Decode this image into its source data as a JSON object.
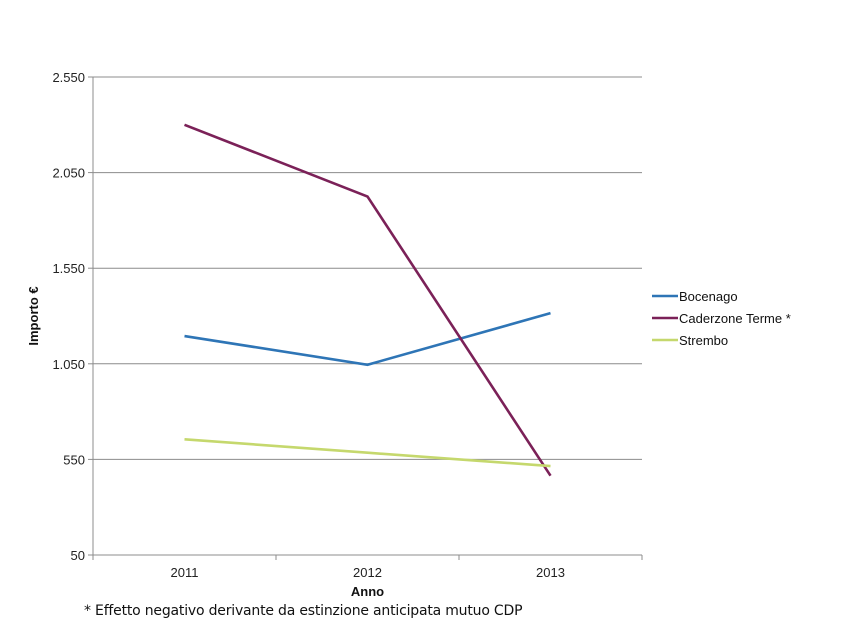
{
  "chart_data": {
    "type": "line",
    "title": "",
    "xlabel": "Anno",
    "ylabel": "Importo €",
    "categories": [
      "2011",
      "2012",
      "2013"
    ],
    "ylim": [
      50,
      2550
    ],
    "yticks": [
      50,
      550,
      1050,
      1550,
      2050,
      2550
    ],
    "ytick_labels": [
      "50",
      "550",
      "1.050",
      "1.550",
      "2.050",
      "2.550"
    ],
    "grid": true,
    "legend_position": "right",
    "series": [
      {
        "name": "Bocenago",
        "color": "#2e75b6",
        "values": [
          1195,
          1045,
          1315
        ]
      },
      {
        "name": "Caderzone Terme *",
        "color": "#7b2158",
        "values": [
          2300,
          1925,
          465
        ]
      },
      {
        "name": "Strembo",
        "color": "#c5d86d",
        "values": [
          655,
          585,
          515
        ]
      }
    ]
  },
  "footnote": "* Effetto negativo derivante da estinzione anticipata mutuo CDP"
}
